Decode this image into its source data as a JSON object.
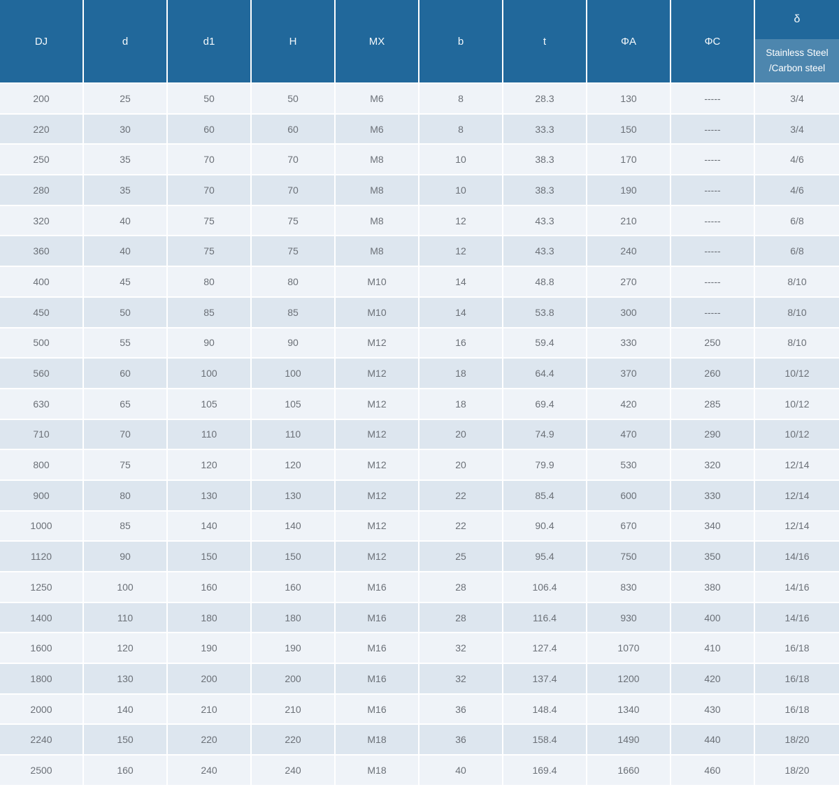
{
  "colors": {
    "header_bg": "#21689b",
    "subheader_bg": "#4d86ae",
    "header_text": "#f3f8fb",
    "row_light": "#eff3f8",
    "row_dark": "#dde6ef",
    "cell_text": "#6b7077",
    "gridline": "#ffffff"
  },
  "table": {
    "headers": [
      "DJ",
      "d",
      "d1",
      "H",
      "MX",
      "b",
      "t",
      "ΦA",
      "ΦC"
    ],
    "delta_header": {
      "symbol": "δ",
      "line1": "Stainless Steel",
      "line2": "/Carbon steel"
    },
    "col_keys": [
      "dj",
      "d",
      "d1",
      "h",
      "mx",
      "b",
      "t",
      "phi-a",
      "phi-c",
      "delta"
    ],
    "rows": [
      [
        "200",
        "25",
        "50",
        "50",
        "M6",
        "8",
        "28.3",
        "130",
        "-----",
        "3/4"
      ],
      [
        "220",
        "30",
        "60",
        "60",
        "M6",
        "8",
        "33.3",
        "150",
        "-----",
        "3/4"
      ],
      [
        "250",
        "35",
        "70",
        "70",
        "M8",
        "10",
        "38.3",
        "170",
        "-----",
        "4/6"
      ],
      [
        "280",
        "35",
        "70",
        "70",
        "M8",
        "10",
        "38.3",
        "190",
        "-----",
        "4/6"
      ],
      [
        "320",
        "40",
        "75",
        "75",
        "M8",
        "12",
        "43.3",
        "210",
        "-----",
        "6/8"
      ],
      [
        "360",
        "40",
        "75",
        "75",
        "M8",
        "12",
        "43.3",
        "240",
        "-----",
        "6/8"
      ],
      [
        "400",
        "45",
        "80",
        "80",
        "M10",
        "14",
        "48.8",
        "270",
        "-----",
        "8/10"
      ],
      [
        "450",
        "50",
        "85",
        "85",
        "M10",
        "14",
        "53.8",
        "300",
        "-----",
        "8/10"
      ],
      [
        "500",
        "55",
        "90",
        "90",
        "M12",
        "16",
        "59.4",
        "330",
        "250",
        "8/10"
      ],
      [
        "560",
        "60",
        "100",
        "100",
        "M12",
        "18",
        "64.4",
        "370",
        "260",
        "10/12"
      ],
      [
        "630",
        "65",
        "105",
        "105",
        "M12",
        "18",
        "69.4",
        "420",
        "285",
        "10/12"
      ],
      [
        "710",
        "70",
        "110",
        "110",
        "M12",
        "20",
        "74.9",
        "470",
        "290",
        "10/12"
      ],
      [
        "800",
        "75",
        "120",
        "120",
        "M12",
        "20",
        "79.9",
        "530",
        "320",
        "12/14"
      ],
      [
        "900",
        "80",
        "130",
        "130",
        "M12",
        "22",
        "85.4",
        "600",
        "330",
        "12/14"
      ],
      [
        "1000",
        "85",
        "140",
        "140",
        "M12",
        "22",
        "90.4",
        "670",
        "340",
        "12/14"
      ],
      [
        "1120",
        "90",
        "150",
        "150",
        "M12",
        "25",
        "95.4",
        "750",
        "350",
        "14/16"
      ],
      [
        "1250",
        "100",
        "160",
        "160",
        "M16",
        "28",
        "106.4",
        "830",
        "380",
        "14/16"
      ],
      [
        "1400",
        "110",
        "180",
        "180",
        "M16",
        "28",
        "116.4",
        "930",
        "400",
        "14/16"
      ],
      [
        "1600",
        "120",
        "190",
        "190",
        "M16",
        "32",
        "127.4",
        "1070",
        "410",
        "16/18"
      ],
      [
        "1800",
        "130",
        "200",
        "200",
        "M16",
        "32",
        "137.4",
        "1200",
        "420",
        "16/18"
      ],
      [
        "2000",
        "140",
        "210",
        "210",
        "M16",
        "36",
        "148.4",
        "1340",
        "430",
        "16/18"
      ],
      [
        "2240",
        "150",
        "220",
        "220",
        "M18",
        "36",
        "158.4",
        "1490",
        "440",
        "18/20"
      ],
      [
        "2500",
        "160",
        "240",
        "240",
        "M18",
        "40",
        "169.4",
        "1660",
        "460",
        "18/20"
      ]
    ]
  }
}
